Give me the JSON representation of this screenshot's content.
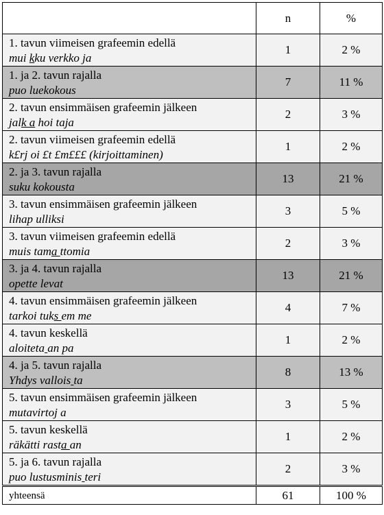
{
  "header": {
    "col_label": "",
    "col_n": "n",
    "col_pct": "%"
  },
  "rows": [
    {
      "title": "1. tavun viimeisen grafeemin edellä",
      "ex": [
        "mui ",
        "k",
        "ku verkko ja"
      ],
      "n": "1",
      "pct": "2 %",
      "shade": "light"
    },
    {
      "title": "1. ja 2. tavun rajalla",
      "ex": [
        "puo luekokous",
        "",
        ""
      ],
      "n": "7",
      "pct": "11 %",
      "shade": "mid"
    },
    {
      "title": "2. tavun ensimmäisen grafeemin jälkeen",
      "ex": [
        "jal",
        "k a",
        " hoi taja"
      ],
      "n": "2",
      "pct": "3 %",
      "shade": "light"
    },
    {
      "title": "2. tavun viimeisen grafeemin edellä",
      "ex": [
        "k£rj oi £t £m£££ (kirjoittaminen)",
        "",
        ""
      ],
      "n": "1",
      "pct": "2 %",
      "shade": "light"
    },
    {
      "title": "2. ja 3. tavun rajalla",
      "ex": [
        "suku kokousta",
        "",
        ""
      ],
      "n": "13",
      "pct": "21 %",
      "shade": "dark"
    },
    {
      "title": "3. tavun ensimmäisen grafeemin jälkeen",
      "ex": [
        "lihap ulliksi",
        "",
        ""
      ],
      "n": "3",
      "pct": "5 %",
      "shade": "light"
    },
    {
      "title": "3. tavun viimeisen grafeemin edellä",
      "ex": [
        "muis tam",
        "a ",
        "ttomia"
      ],
      "n": "2",
      "pct": "3 %",
      "shade": "light"
    },
    {
      "title": "3. ja 4. tavun rajalla",
      "ex": [
        "opette levat",
        "",
        ""
      ],
      "n": "13",
      "pct": "21 %",
      "shade": "dark"
    },
    {
      "title": "4. tavun ensimmäisen grafeemin jälkeen",
      "ex": [
        "tarkoi tuk",
        "s ",
        "em me"
      ],
      "n": "4",
      "pct": "7 %",
      "shade": "light"
    },
    {
      "title": "4. tavun keskellä",
      "ex": [
        "aloiteta",
        " ",
        "an pa"
      ],
      "n": "1",
      "pct": "2 %",
      "shade": "light"
    },
    {
      "title": "4. ja 5. tavun rajalla",
      "ex": [
        "Yhdys vallois",
        " ",
        "ta"
      ],
      "n": "8",
      "pct": "13 %",
      "shade": "mid"
    },
    {
      "title": "5. tavun ensimmäisen grafeemin jälkeen",
      "ex": [
        "mutavirtoj a",
        "",
        ""
      ],
      "n": "3",
      "pct": "5 %",
      "shade": "light"
    },
    {
      "title": "5. tavun keskellä",
      "ex": [
        "räkätti rast",
        "a ",
        "an"
      ],
      "n": "1",
      "pct": "2 %",
      "shade": "light"
    },
    {
      "title": "5. ja 6. tavun rajalla",
      "ex": [
        "puo lustusminis",
        " ",
        "teri"
      ],
      "n": "2",
      "pct": "3 %",
      "shade": "light"
    }
  ],
  "total": {
    "label": "yhteensä",
    "n": "61",
    "pct": "100 %"
  }
}
